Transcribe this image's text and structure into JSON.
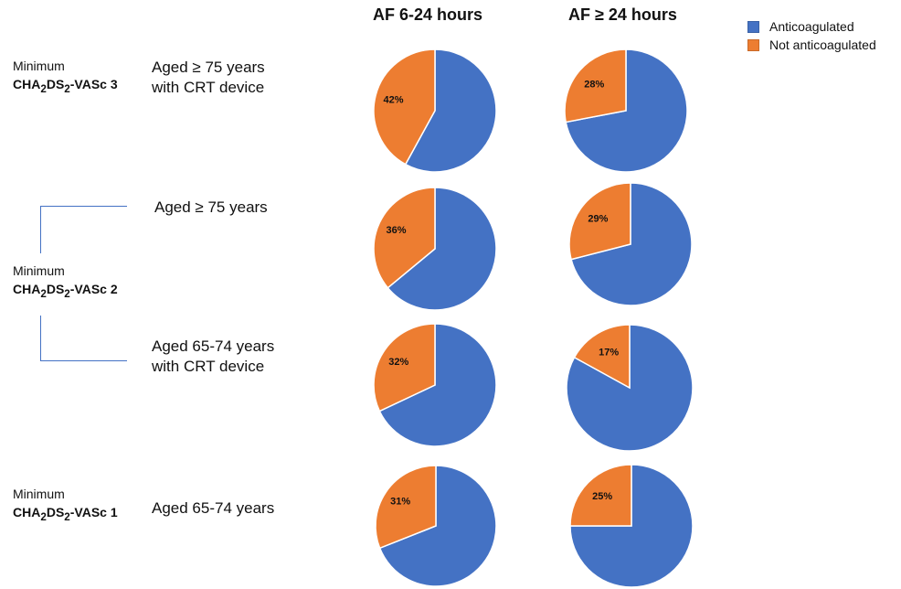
{
  "colors": {
    "anticoagulated": "#4472C4",
    "not_anticoagulated": "#ED7D31"
  },
  "columns": [
    "AF 6-24 hours",
    "AF ≥ 24 hours"
  ],
  "legend": [
    "Anticoagulated",
    "Not anticoagulated"
  ],
  "scores": [
    {
      "prefix": "Minimum",
      "name": "CHA",
      "sub1": "2",
      "mid": "DS",
      "sub2": "2",
      "suffix": "-VASc 3"
    },
    {
      "prefix": "Minimum",
      "name": "CHA",
      "sub1": "2",
      "mid": "DS",
      "sub2": "2",
      "suffix": "-VASc 2"
    },
    {
      "prefix": "Minimum",
      "name": "CHA",
      "sub1": "2",
      "mid": "DS",
      "sub2": "2",
      "suffix": "-VASc 1"
    }
  ],
  "groups": [
    {
      "line1": "Aged ≥ 75 years",
      "line2": "with CRT device"
    },
    {
      "line1": "Aged ≥ 75 years",
      "line2": ""
    },
    {
      "line1": "Aged 65-74 years",
      "line2": "with CRT device"
    },
    {
      "line1": "Aged 65-74 years",
      "line2": ""
    }
  ],
  "chart_data": {
    "type": "pie",
    "series": [
      {
        "name": "Anticoagulated",
        "values": [
          58,
          64,
          68,
          69,
          72,
          71,
          83,
          75
        ]
      },
      {
        "name": "Not anticoagulated",
        "values": [
          42,
          36,
          32,
          31,
          28,
          29,
          17,
          25
        ]
      }
    ],
    "pies": [
      {
        "column": "AF 6-24 hours",
        "group": "Aged ≥ 75 years with CRT device",
        "anticoagulated": 58,
        "not_anticoagulated": 42,
        "label": "42%"
      },
      {
        "column": "AF 6-24 hours",
        "group": "Aged ≥ 75 years",
        "anticoagulated": 64,
        "not_anticoagulated": 36,
        "label": "36%"
      },
      {
        "column": "AF 6-24 hours",
        "group": "Aged 65-74 years with CRT device",
        "anticoagulated": 68,
        "not_anticoagulated": 32,
        "label": "32%"
      },
      {
        "column": "AF 6-24 hours",
        "group": "Aged 65-74 years",
        "anticoagulated": 69,
        "not_anticoagulated": 31,
        "label": "31%"
      },
      {
        "column": "AF ≥ 24 hours",
        "group": "Aged ≥ 75 years with CRT device",
        "anticoagulated": 72,
        "not_anticoagulated": 28,
        "label": "28%"
      },
      {
        "column": "AF ≥ 24 hours",
        "group": "Aged ≥ 75 years",
        "anticoagulated": 71,
        "not_anticoagulated": 29,
        "label": "29%"
      },
      {
        "column": "AF ≥ 24 hours",
        "group": "Aged 65-74 years with CRT device",
        "anticoagulated": 83,
        "not_anticoagulated": 17,
        "label": "17%"
      },
      {
        "column": "AF ≥ 24 hours",
        "group": "Aged 65-74 years",
        "anticoagulated": 75,
        "not_anticoagulated": 25,
        "label": "25%"
      }
    ]
  }
}
